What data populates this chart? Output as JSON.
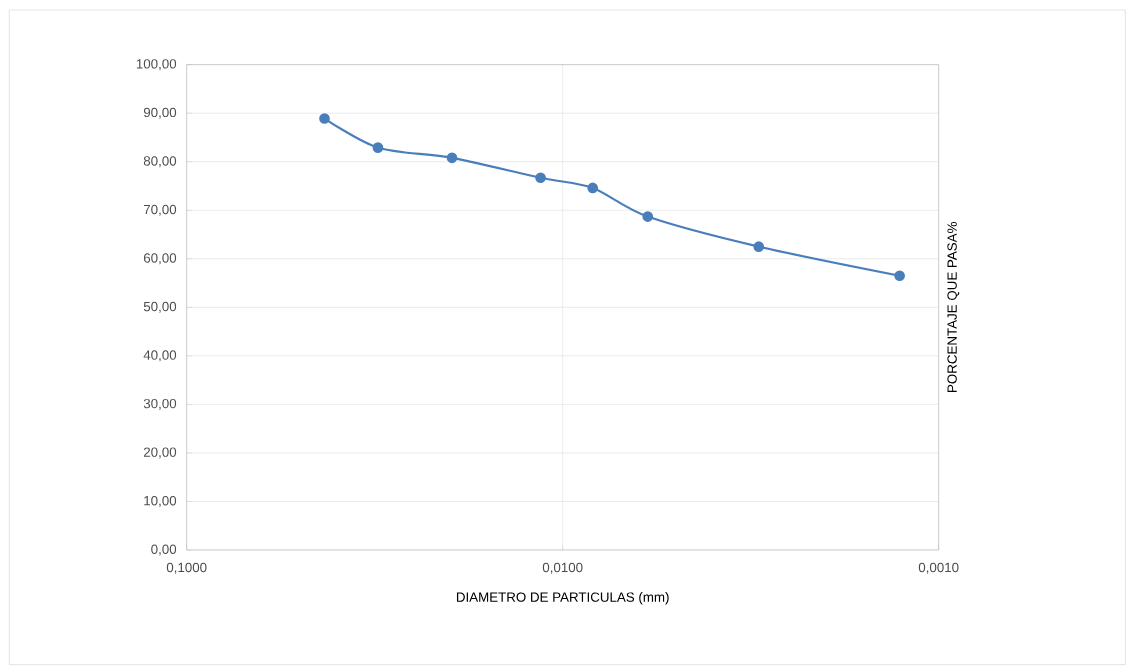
{
  "chart_data": {
    "type": "line",
    "xlabel": "DIAMETRO DE PARTICULAS (mm)",
    "ylabel": "PORCENTAJE QUE PASA%",
    "x": [
      0.043,
      0.031,
      0.0197,
      0.01145,
      0.00832,
      0.00594,
      0.00301,
      0.00127
    ],
    "series": [
      {
        "color": "#4a7ebb",
        "values": [
          88.9,
          82.9,
          80.8,
          76.7,
          74.6,
          68.7,
          62.5,
          56.5
        ]
      }
    ],
    "xlim": [
      0.1,
      0.001
    ],
    "xticks": [
      {
        "value": 0.1,
        "label": "0,1000"
      },
      {
        "value": 0.01,
        "label": "0,0100"
      },
      {
        "value": 0.001,
        "label": "0,0010"
      }
    ],
    "ylim": [
      0,
      100
    ],
    "yticks": [
      {
        "value": 0,
        "label": "0,00"
      },
      {
        "value": 10,
        "label": "10,00"
      },
      {
        "value": 20,
        "label": "20,00"
      },
      {
        "value": 30,
        "label": "30,00"
      },
      {
        "value": 40,
        "label": "40,00"
      },
      {
        "value": 50,
        "label": "50,00"
      },
      {
        "value": 60,
        "label": "60,00"
      },
      {
        "value": 70,
        "label": "70,00"
      },
      {
        "value": 80,
        "label": "80,00"
      },
      {
        "value": 90,
        "label": "90,00"
      },
      {
        "value": 100,
        "label": "100,00"
      }
    ],
    "log": "x",
    "grid": true,
    "marker": "circle",
    "line_style": "solid"
  }
}
